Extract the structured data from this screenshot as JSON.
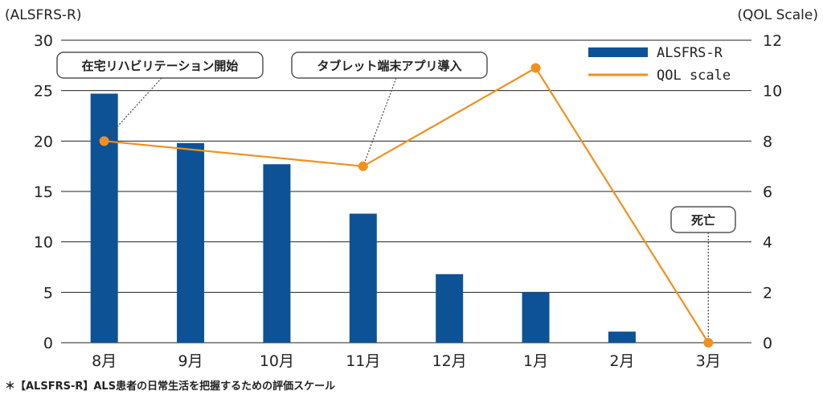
{
  "chart_data": {
    "type": "bar",
    "categories": [
      "8月",
      "9月",
      "10月",
      "11月",
      "12月",
      "1月",
      "2月",
      "3月"
    ],
    "series": [
      {
        "name": "ALSFRS-R",
        "type": "bar",
        "axis": "left",
        "color": "#0e5296",
        "values": [
          24.7,
          19.8,
          17.7,
          12.8,
          6.8,
          5.0,
          1.1,
          null
        ]
      },
      {
        "name": "QOL scale",
        "type": "line",
        "axis": "right",
        "color": "#f0901e",
        "values": [
          8,
          null,
          null,
          7,
          null,
          10.9,
          null,
          0
        ]
      }
    ],
    "y_left": {
      "label": "(ALSFRS-R)",
      "lim": [
        0,
        30
      ],
      "ticks": [
        0,
        5,
        10,
        15,
        20,
        25,
        30
      ]
    },
    "y_right": {
      "label": "(QOL Scale)",
      "lim": [
        0,
        12
      ],
      "ticks": [
        0,
        2,
        4,
        6,
        8,
        10,
        12
      ]
    },
    "grid": true,
    "legend": {
      "position": "top-right"
    },
    "annotations": [
      {
        "text": "在宅リハビリテーション開始",
        "category_index": 0
      },
      {
        "text": "タブレット端末アプリ導入",
        "category_index": 3
      },
      {
        "text": "死亡",
        "category_index": 7
      }
    ],
    "footnote": "＊【ALSFRS-R】ALS患者の日常生活を把握するための評価スケール"
  }
}
